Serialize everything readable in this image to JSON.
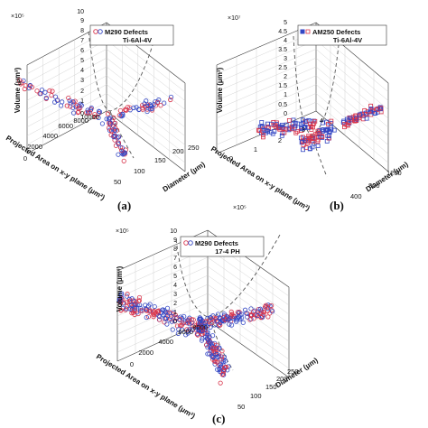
{
  "chart_data": [
    {
      "type": "scatter",
      "panel_label": "(a)",
      "legend": {
        "title": "M290 Defects",
        "subtitle": "Ti-6Al-4V",
        "markers": [
          "red circle",
          "blue circle"
        ],
        "placement": "top"
      },
      "z_multiplier": "×10⁵",
      "zlabel": "Volume (μm³)",
      "xlabel": "Projected Area on x-y plane (μm²)",
      "ylabel": "Diameter (μm)",
      "z_ticks": [
        "0",
        "1",
        "2",
        "3",
        "4",
        "5",
        "6",
        "7",
        "8",
        "9",
        "10"
      ],
      "x_ticks": [
        "0",
        "2000",
        "4000",
        "6000",
        "8000",
        "10000"
      ],
      "y_ticks": [
        "50",
        "100",
        "150",
        "200",
        "250"
      ],
      "grid": true,
      "colors": {
        "series_a": "#d8334a",
        "series_b": "#3347c4",
        "guide": "#555555"
      }
    },
    {
      "type": "scatter",
      "panel_label": "(b)",
      "legend": {
        "title": "AM250 Defects",
        "subtitle": "Ti-6Al-4V",
        "markers": [
          "red square",
          "blue square"
        ],
        "placement": "top"
      },
      "z_multiplier": "×10⁷",
      "zlabel": "Volume (μm³)",
      "xlabel": "Projected Area on x-y plane (μm²)",
      "ylabel": "Diameter (μm)",
      "z_ticks": [
        "0",
        "0.5",
        "1",
        "1.5",
        "2",
        "2.5",
        "3",
        "3.5",
        "4",
        "4.5",
        "5"
      ],
      "x_ticks": [
        "0",
        "1",
        "2",
        "3",
        "4"
      ],
      "x_multiplier": "×10⁵",
      "y_ticks": [
        "400",
        "800",
        "1200"
      ],
      "grid": true,
      "colors": {
        "series_a": "#d8334a",
        "series_b": "#3347c4",
        "guide": "#555555"
      }
    },
    {
      "type": "scatter",
      "panel_label": "(c)",
      "legend": {
        "title": "M290 Defects",
        "subtitle": "17-4 PH",
        "markers": [
          "red circle",
          "blue circle"
        ],
        "placement": "top"
      },
      "z_multiplier": "×10⁵",
      "zlabel": "Volume (μm³)",
      "xlabel": "Projected Area on x-y plane (μm²)",
      "ylabel": "Diameter (μm)",
      "z_ticks": [
        "0",
        "1",
        "2",
        "3",
        "4",
        "5",
        "6",
        "7",
        "8",
        "9",
        "10"
      ],
      "x_ticks": [
        "0",
        "2000",
        "4000",
        "6000",
        "8000",
        "10000"
      ],
      "y_ticks": [
        "50",
        "100",
        "150",
        "200",
        "250"
      ],
      "grid": true,
      "colors": {
        "series_a": "#d8334a",
        "series_b": "#3347c4",
        "guide": "#555555"
      }
    }
  ]
}
